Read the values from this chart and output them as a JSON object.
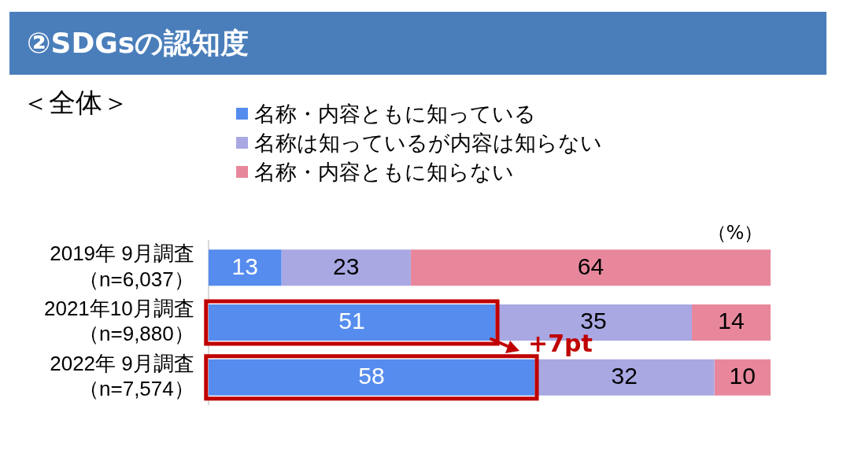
{
  "chart_data": {
    "type": "bar",
    "orientation": "horizontal",
    "stacked": true,
    "title": "②SDGsの認知度",
    "subtitle": "＜全体＞",
    "categories": [
      "2019年 9月調査（n=6,037）",
      "2021年10月調査（n=9,880）",
      "2022年 9月調査（n=7,574）"
    ],
    "series": [
      {
        "name": "名称・内容ともに知っている",
        "color": "#568cee",
        "values": [
          13,
          51,
          58
        ]
      },
      {
        "name": "名称は知っているが内容は知らない",
        "color": "#a9a8e3",
        "values": [
          23,
          35,
          32
        ]
      },
      {
        "name": "名称・内容ともに知らない",
        "color": "#e8879c",
        "values": [
          64,
          14,
          10
        ]
      }
    ],
    "data_labels": true,
    "legend": "top",
    "grid": false,
    "annotations": [
      "（%）",
      "+7pt"
    ]
  }
}
